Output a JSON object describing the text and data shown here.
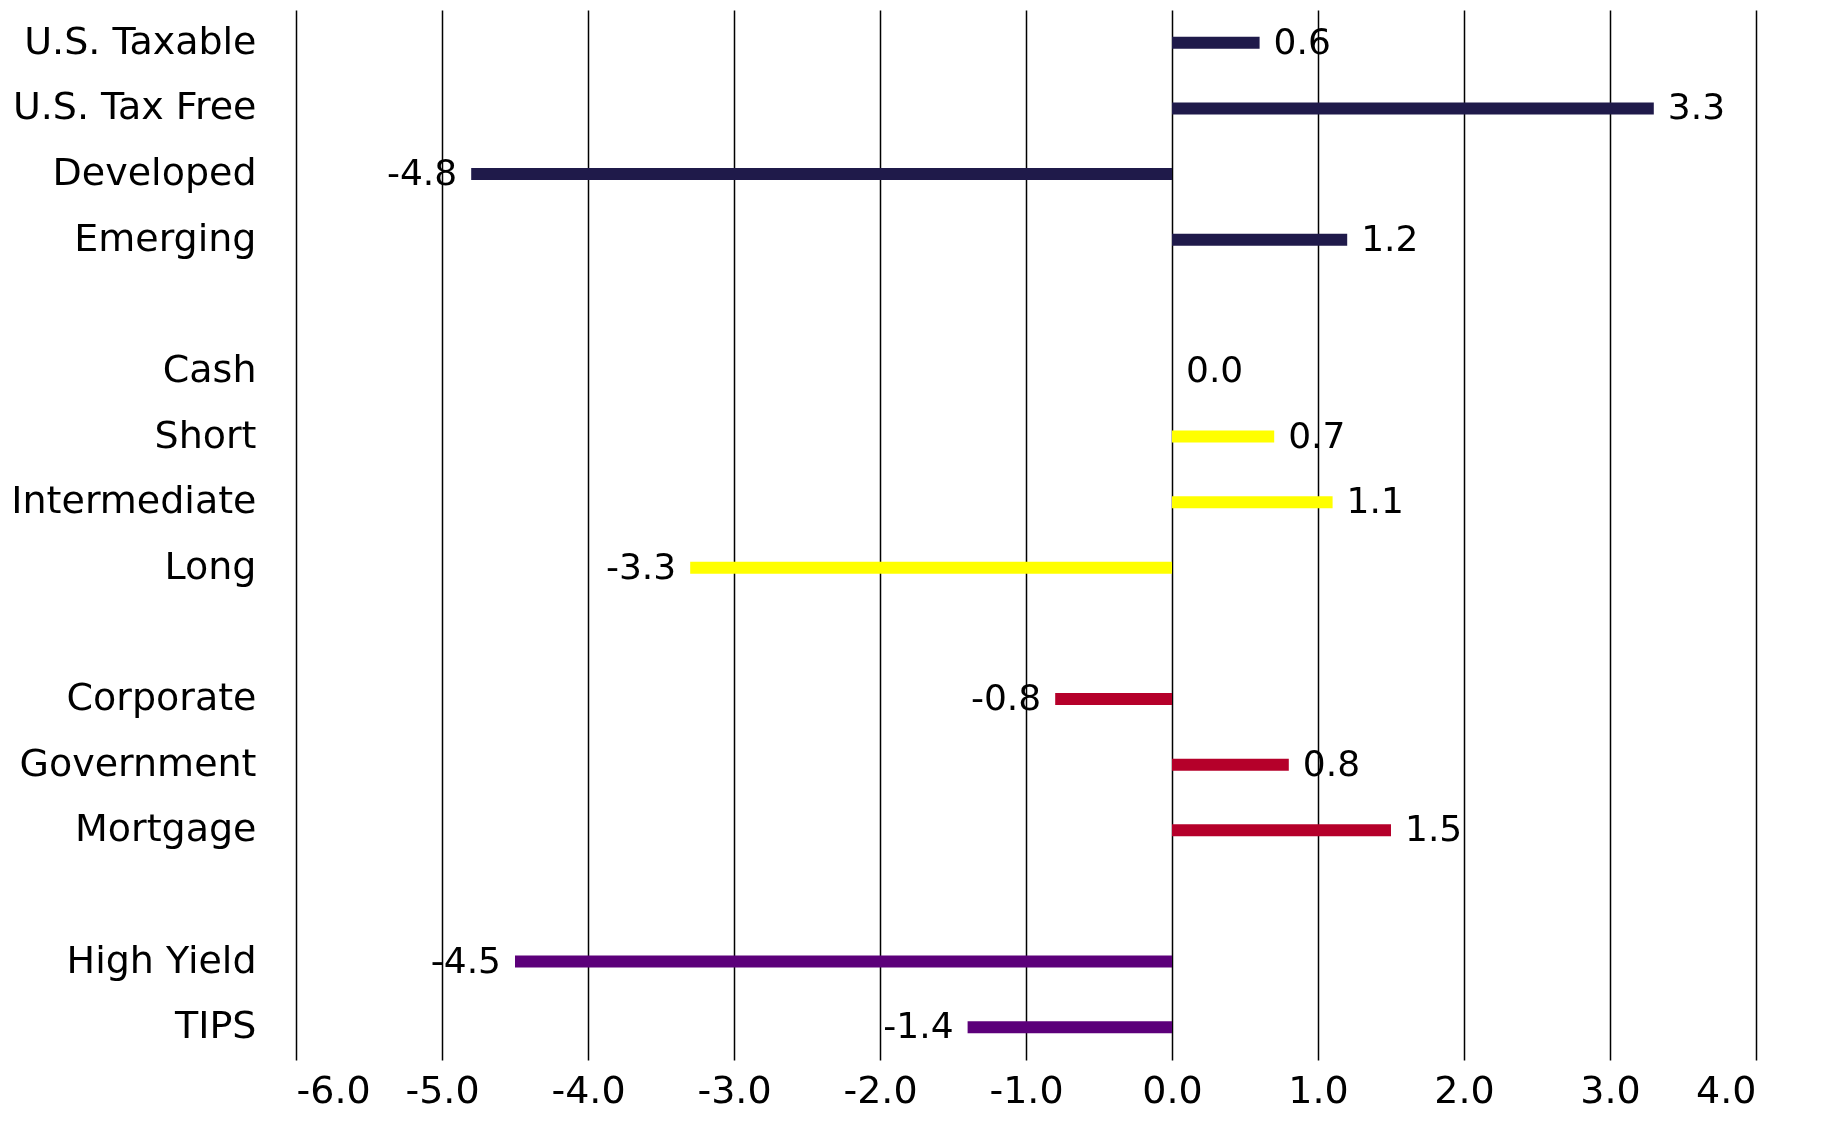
{
  "chart_data": {
    "type": "bar",
    "orientation": "horizontal",
    "categories": [
      "U.S. Taxable",
      "U.S. Tax Free",
      "Developed",
      "Emerging",
      null,
      "Cash",
      "Short",
      "Intermediate",
      "Long",
      null,
      "Corporate",
      "Government",
      "Mortgage",
      null,
      "High Yield",
      "TIPS"
    ],
    "values": [
      0.6,
      3.3,
      -4.8,
      1.2,
      null,
      0.0,
      0.7,
      1.1,
      -3.3,
      null,
      -0.8,
      0.8,
      1.5,
      null,
      -4.5,
      -1.4
    ],
    "value_labels": [
      "0.6",
      "3.3",
      "-4.8",
      "1.2",
      null,
      "0.0",
      "0.7",
      "1.1",
      "-3.3",
      null,
      "-0.8",
      "0.8",
      "1.5",
      null,
      "-4.5",
      "-1.4"
    ],
    "colors": [
      "#1f1a4a",
      "#1f1a4a",
      "#1f1a4a",
      "#1f1a4a",
      "#ffffff",
      "#ffff00",
      "#ffff00",
      "#ffff00",
      "#ffff00",
      "#ffffff",
      "#b5002a",
      "#b5002a",
      "#b5002a",
      "#ffffff",
      "#5c007a",
      "#5c007a"
    ],
    "xlim": [
      -6,
      4
    ],
    "xticks": [
      {
        "value": -6,
        "label": "-6.0"
      },
      {
        "value": -5,
        "label": "-5.0"
      },
      {
        "value": -4,
        "label": "-4.0"
      },
      {
        "value": -3,
        "label": "-3.0"
      },
      {
        "value": -2,
        "label": "-2.0"
      },
      {
        "value": -1,
        "label": "-1.0"
      },
      {
        "value": 0,
        "label": "0.0"
      },
      {
        "value": 1,
        "label": "1.0"
      },
      {
        "value": 2,
        "label": "2.0"
      },
      {
        "value": 3,
        "label": "3.0"
      },
      {
        "value": 4,
        "label": "4.0"
      }
    ],
    "grid": "x",
    "legend": false
  }
}
